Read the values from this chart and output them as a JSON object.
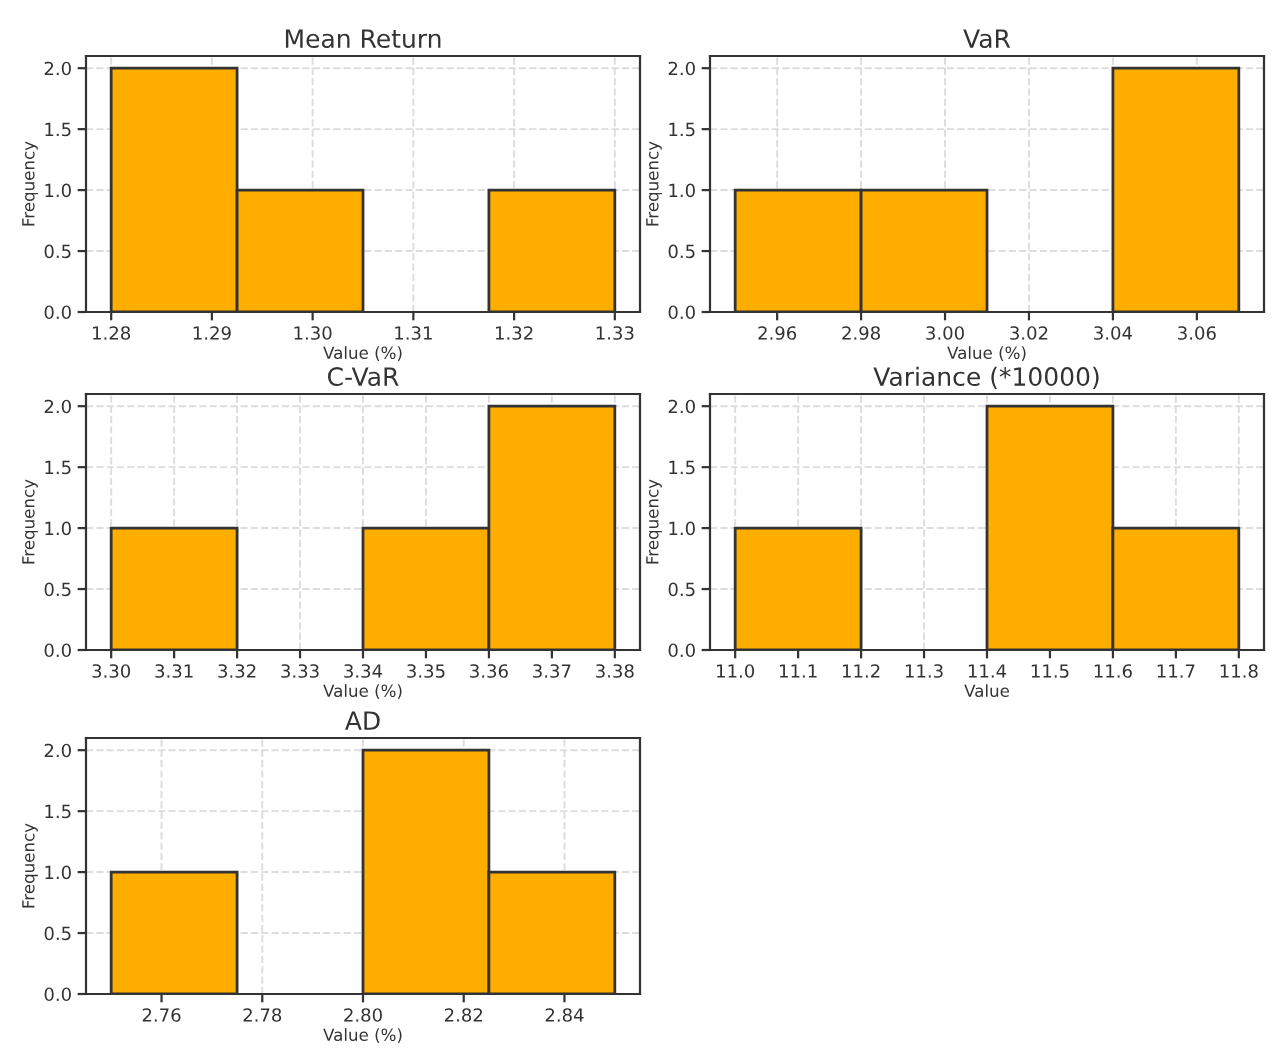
{
  "chart_data": [
    {
      "type": "histogram",
      "title": "Mean Return",
      "xlabel": "Value (%)",
      "ylabel": "Frequency",
      "bins": [
        1.28,
        1.2925,
        1.305,
        1.3175,
        1.33
      ],
      "values": [
        2,
        1,
        0,
        1
      ],
      "color": "#ffae00",
      "xlim": [
        1.2775,
        1.3325
      ],
      "xticks": [
        {
          "value": 1.28,
          "label": "1.28"
        },
        {
          "value": 1.29,
          "label": "1.29"
        },
        {
          "value": 1.3,
          "label": "1.30"
        },
        {
          "value": 1.31,
          "label": "1.31"
        },
        {
          "value": 1.32,
          "label": "1.32"
        },
        {
          "value": 1.33,
          "label": "1.33"
        }
      ],
      "ylim": [
        0,
        2.1
      ],
      "yticks": [
        {
          "value": 0,
          "label": "0.0"
        },
        {
          "value": 0.5,
          "label": "0.5"
        },
        {
          "value": 1,
          "label": "1.0"
        },
        {
          "value": 1.5,
          "label": "1.5"
        },
        {
          "value": 2,
          "label": "2.0"
        }
      ],
      "grid": true
    },
    {
      "type": "histogram",
      "title": "VaR",
      "xlabel": "Value (%)",
      "ylabel": "Frequency",
      "bins": [
        2.95,
        2.98,
        3.01,
        3.04,
        3.07
      ],
      "values": [
        1,
        1,
        0,
        2
      ],
      "color": "#ffae00",
      "xlim": [
        2.944,
        3.076
      ],
      "xticks": [
        {
          "value": 2.96,
          "label": "2.96"
        },
        {
          "value": 2.98,
          "label": "2.98"
        },
        {
          "value": 3.0,
          "label": "3.00"
        },
        {
          "value": 3.02,
          "label": "3.02"
        },
        {
          "value": 3.04,
          "label": "3.04"
        },
        {
          "value": 3.06,
          "label": "3.06"
        }
      ],
      "ylim": [
        0,
        2.1
      ],
      "yticks": [
        {
          "value": 0,
          "label": "0.0"
        },
        {
          "value": 0.5,
          "label": "0.5"
        },
        {
          "value": 1,
          "label": "1.0"
        },
        {
          "value": 1.5,
          "label": "1.5"
        },
        {
          "value": 2,
          "label": "2.0"
        }
      ],
      "grid": true
    },
    {
      "type": "histogram",
      "title": "C-VaR",
      "xlabel": "Value (%)",
      "ylabel": "Frequency",
      "bins": [
        3.3,
        3.32,
        3.34,
        3.36,
        3.38
      ],
      "values": [
        1,
        0,
        1,
        2
      ],
      "color": "#ffae00",
      "xlim": [
        3.296,
        3.384
      ],
      "xticks": [
        {
          "value": 3.3,
          "label": "3.30"
        },
        {
          "value": 3.31,
          "label": "3.31"
        },
        {
          "value": 3.32,
          "label": "3.32"
        },
        {
          "value": 3.33,
          "label": "3.33"
        },
        {
          "value": 3.34,
          "label": "3.34"
        },
        {
          "value": 3.35,
          "label": "3.35"
        },
        {
          "value": 3.36,
          "label": "3.36"
        },
        {
          "value": 3.37,
          "label": "3.37"
        },
        {
          "value": 3.38,
          "label": "3.38"
        }
      ],
      "ylim": [
        0,
        2.1
      ],
      "yticks": [
        {
          "value": 0,
          "label": "0.0"
        },
        {
          "value": 0.5,
          "label": "0.5"
        },
        {
          "value": 1,
          "label": "1.0"
        },
        {
          "value": 1.5,
          "label": "1.5"
        },
        {
          "value": 2,
          "label": "2.0"
        }
      ],
      "grid": true
    },
    {
      "type": "histogram",
      "title": "Variance (*10000)",
      "xlabel": "Value",
      "ylabel": "Frequency",
      "bins": [
        11.0,
        11.2,
        11.4,
        11.6,
        11.8
      ],
      "values": [
        1,
        0,
        2,
        1
      ],
      "color": "#ffae00",
      "xlim": [
        10.96,
        11.84
      ],
      "xticks": [
        {
          "value": 11.0,
          "label": "11.0"
        },
        {
          "value": 11.1,
          "label": "11.1"
        },
        {
          "value": 11.2,
          "label": "11.2"
        },
        {
          "value": 11.3,
          "label": "11.3"
        },
        {
          "value": 11.4,
          "label": "11.4"
        },
        {
          "value": 11.5,
          "label": "11.5"
        },
        {
          "value": 11.6,
          "label": "11.6"
        },
        {
          "value": 11.7,
          "label": "11.7"
        },
        {
          "value": 11.8,
          "label": "11.8"
        }
      ],
      "ylim": [
        0,
        2.1
      ],
      "yticks": [
        {
          "value": 0,
          "label": "0.0"
        },
        {
          "value": 0.5,
          "label": "0.5"
        },
        {
          "value": 1,
          "label": "1.0"
        },
        {
          "value": 1.5,
          "label": "1.5"
        },
        {
          "value": 2,
          "label": "2.0"
        }
      ],
      "grid": true
    },
    {
      "type": "histogram",
      "title": "AD",
      "xlabel": "Value (%)",
      "ylabel": "Frequency",
      "bins": [
        2.75,
        2.775,
        2.8,
        2.825,
        2.85
      ],
      "values": [
        1,
        0,
        2,
        1
      ],
      "color": "#ffae00",
      "xlim": [
        2.745,
        2.855
      ],
      "xticks": [
        {
          "value": 2.76,
          "label": "2.76"
        },
        {
          "value": 2.78,
          "label": "2.78"
        },
        {
          "value": 2.8,
          "label": "2.80"
        },
        {
          "value": 2.82,
          "label": "2.82"
        },
        {
          "value": 2.84,
          "label": "2.84"
        }
      ],
      "ylim": [
        0,
        2.1
      ],
      "yticks": [
        {
          "value": 0,
          "label": "0.0"
        },
        {
          "value": 0.5,
          "label": "0.5"
        },
        {
          "value": 1,
          "label": "1.0"
        },
        {
          "value": 1.5,
          "label": "1.5"
        },
        {
          "value": 2,
          "label": "2.0"
        }
      ],
      "grid": true
    }
  ]
}
